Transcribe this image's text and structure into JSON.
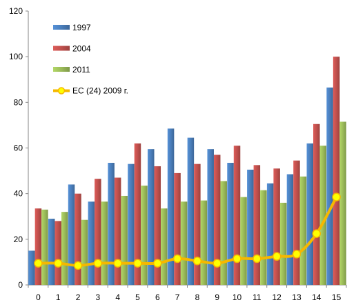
{
  "chart_data": {
    "type": "bar",
    "categories": [
      "0",
      "1",
      "2",
      "3",
      "4",
      "5",
      "6",
      "7",
      "8",
      "9",
      "10",
      "11",
      "12",
      "13",
      "14",
      "15"
    ],
    "ylim": [
      0,
      120
    ],
    "yticks": [
      0,
      20,
      40,
      60,
      80,
      100,
      120
    ],
    "grid": false,
    "legend_position": "top-left",
    "series": [
      {
        "name": "1997",
        "type": "bar",
        "color": "#4a7ebb",
        "values": [
          15,
          29,
          44,
          36.5,
          53.5,
          53,
          59.5,
          68.5,
          64.5,
          59.5,
          53.5,
          50.5,
          44.5,
          48.5,
          62,
          86.5
        ]
      },
      {
        "name": "2004",
        "type": "bar",
        "color": "#c0504d",
        "values": [
          33.5,
          28,
          40,
          46.5,
          47,
          62,
          52,
          49,
          53,
          57,
          61,
          52.5,
          51,
          54.5,
          70.5,
          100
        ]
      },
      {
        "name": "2011",
        "type": "bar",
        "color": "#9bbb59",
        "values": [
          33,
          32,
          28.5,
          36.5,
          39,
          43.5,
          33.5,
          36.5,
          37,
          45.5,
          38.5,
          41.5,
          36,
          47.5,
          61,
          71.5
        ]
      },
      {
        "name": "ЕС (24) 2009 г.",
        "type": "line",
        "color": "#f5b800",
        "marker_color": "#ffff00",
        "values": [
          9.5,
          9.5,
          8.5,
          9.5,
          9.5,
          9.5,
          9.5,
          11.5,
          10.5,
          9.5,
          11.5,
          11.5,
          12.5,
          13.5,
          22.5,
          38.5
        ]
      }
    ]
  }
}
